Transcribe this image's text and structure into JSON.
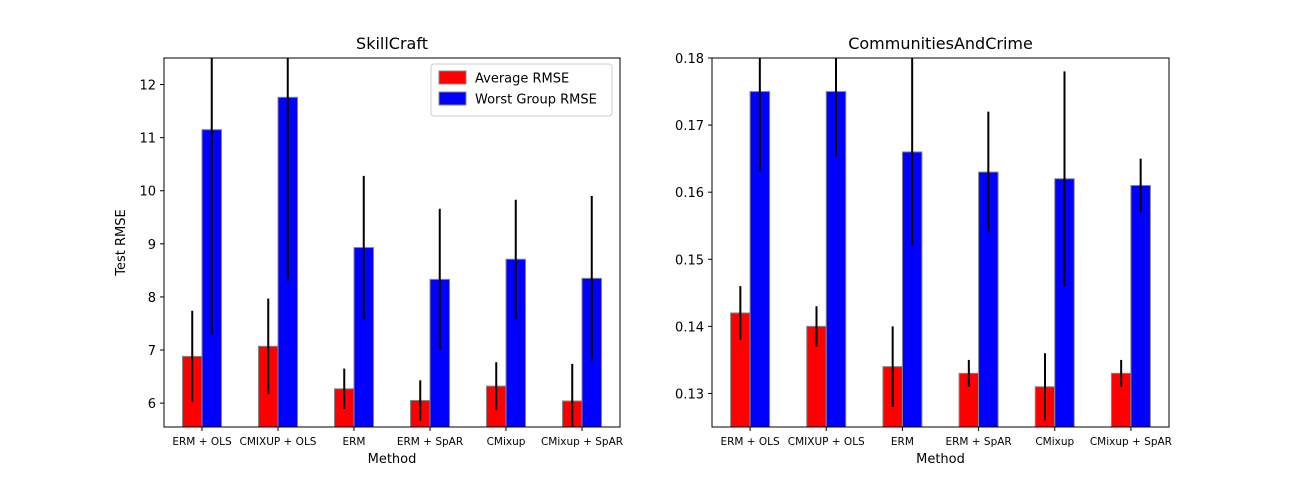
{
  "chart_data": [
    {
      "type": "bar",
      "title": "SkillCraft",
      "xlabel": "Method",
      "ylabel": "Test RMSE",
      "categories": [
        "ERM + OLS",
        "CMIXUP + OLS",
        "ERM",
        "ERM + SpAR",
        "CMixup",
        "CMixup + SpAR"
      ],
      "ylim": [
        5.55,
        12.5
      ],
      "yticks": [
        6,
        7,
        8,
        9,
        10,
        11,
        12
      ],
      "legend_position": "top-right",
      "series": [
        {
          "name": "Average RMSE",
          "color": "#ff0000",
          "values": [
            6.88,
            7.07,
            6.27,
            6.05,
            6.32,
            6.04
          ],
          "errors": [
            0.86,
            0.9,
            0.38,
            0.38,
            0.45,
            0.7
          ]
        },
        {
          "name": "Worst Group RMSE",
          "color": "#0000ff",
          "values": [
            11.15,
            11.76,
            8.93,
            8.33,
            8.71,
            8.35
          ],
          "errors": [
            3.85,
            3.45,
            1.35,
            1.33,
            1.12,
            1.55
          ]
        }
      ]
    },
    {
      "type": "bar",
      "title": "CommunitiesAndCrime",
      "xlabel": "Method",
      "ylabel": "",
      "categories": [
        "ERM + OLS",
        "CMIXUP + OLS",
        "ERM",
        "ERM + SpAR",
        "CMixup",
        "CMixup + SpAR"
      ],
      "ylim": [
        0.125,
        0.18
      ],
      "yticks": [
        0.13,
        0.14,
        0.15,
        0.16,
        0.17,
        0.18
      ],
      "series": [
        {
          "name": "Average RMSE",
          "color": "#ff0000",
          "values": [
            0.142,
            0.14,
            0.134,
            0.133,
            0.131,
            0.133
          ],
          "errors": [
            0.004,
            0.003,
            0.006,
            0.002,
            0.005,
            0.002
          ]
        },
        {
          "name": "Worst Group RMSE",
          "color": "#0000ff",
          "values": [
            0.175,
            0.175,
            0.166,
            0.163,
            0.162,
            0.161
          ],
          "errors": [
            0.012,
            0.0097,
            0.014,
            0.009,
            0.016,
            0.004
          ]
        }
      ]
    }
  ]
}
